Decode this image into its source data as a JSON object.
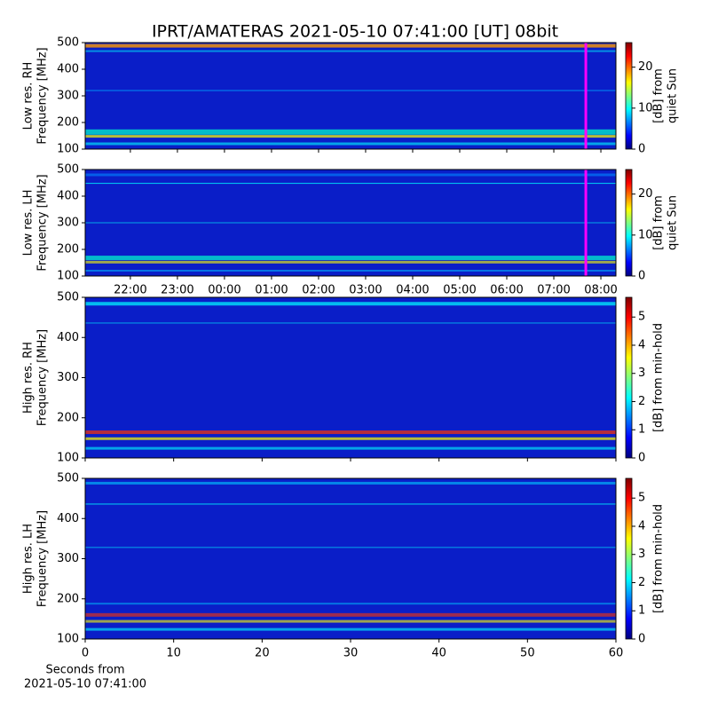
{
  "title": "IPRT/AMATERAS 2021-05-10 07:41:00 [UT]   08bit",
  "chart_data": [
    {
      "type": "heatmap",
      "ylabel": [
        "Low res. RH",
        "Frequency [MHz]"
      ],
      "ylim": [
        100,
        500
      ],
      "yticks": [
        100,
        200,
        300,
        400,
        500
      ],
      "xlim": [
        21.04,
        32.32
      ],
      "xticks": [
        {
          "value": 22,
          "label": "22:00"
        },
        {
          "value": 23,
          "label": "23:00"
        },
        {
          "value": 24,
          "label": "00:00"
        },
        {
          "value": 25,
          "label": "01:00"
        },
        {
          "value": 26,
          "label": "02:00"
        },
        {
          "value": 27,
          "label": "03:00"
        },
        {
          "value": 28,
          "label": "04:00"
        },
        {
          "value": 29,
          "label": "05:00"
        },
        {
          "value": 30,
          "label": "06:00"
        },
        {
          "value": 31,
          "label": "07:00"
        },
        {
          "value": 32,
          "label": "08:00"
        }
      ],
      "show_xticklabels": false,
      "marker_x": 31.68,
      "marker_color": "#ff00ff",
      "colorbar_label": [
        "[dB] from",
        "quiet Sun"
      ],
      "clim": [
        0,
        26
      ],
      "cticks": [
        0,
        10,
        20
      ]
    },
    {
      "type": "heatmap",
      "ylabel": [
        "Low res. LH",
        "Frequency [MHz]"
      ],
      "ylim": [
        100,
        500
      ],
      "yticks": [
        100,
        200,
        300,
        400,
        500
      ],
      "xlim": [
        21.04,
        32.32
      ],
      "xticks": [
        {
          "value": 22,
          "label": "22:00"
        },
        {
          "value": 23,
          "label": "23:00"
        },
        {
          "value": 24,
          "label": "00:00"
        },
        {
          "value": 25,
          "label": "01:00"
        },
        {
          "value": 26,
          "label": "02:00"
        },
        {
          "value": 27,
          "label": "03:00"
        },
        {
          "value": 28,
          "label": "04:00"
        },
        {
          "value": 29,
          "label": "05:00"
        },
        {
          "value": 30,
          "label": "06:00"
        },
        {
          "value": 31,
          "label": "07:00"
        },
        {
          "value": 32,
          "label": "08:00"
        }
      ],
      "show_xticklabels": true,
      "marker_x": 31.68,
      "marker_color": "#ff00ff",
      "colorbar_label": [
        "[dB] from",
        "quiet Sun"
      ],
      "clim": [
        0,
        26
      ],
      "cticks": [
        0,
        10,
        20
      ]
    },
    {
      "type": "heatmap",
      "ylabel": [
        "High res. RH",
        "Frequency [MHz]"
      ],
      "ylim": [
        100,
        500
      ],
      "yticks": [
        100,
        200,
        300,
        400,
        500
      ],
      "xlim": [
        0,
        60
      ],
      "xticks": [
        0,
        10,
        20,
        30,
        40,
        50,
        60
      ],
      "show_xticklabels": false,
      "colorbar_label": [
        "[dB] from min-hold"
      ],
      "clim": [
        0,
        5.7
      ],
      "cticks": [
        0,
        1,
        2,
        3,
        4,
        5
      ]
    },
    {
      "type": "heatmap",
      "ylabel": [
        "High res. LH",
        "Frequency [MHz]"
      ],
      "ylim": [
        100,
        500
      ],
      "yticks": [
        100,
        200,
        300,
        400,
        500
      ],
      "xlim": [
        0,
        60
      ],
      "xticks": [
        0,
        10,
        20,
        30,
        40,
        50,
        60
      ],
      "show_xticklabels": true,
      "xlabel": [
        "Seconds from",
        "2021-05-10 07:41:00"
      ],
      "colorbar_label": [
        "[dB] from min-hold"
      ],
      "clim": [
        0,
        5.7
      ],
      "cticks": [
        0,
        1,
        2,
        3,
        4,
        5
      ]
    }
  ]
}
